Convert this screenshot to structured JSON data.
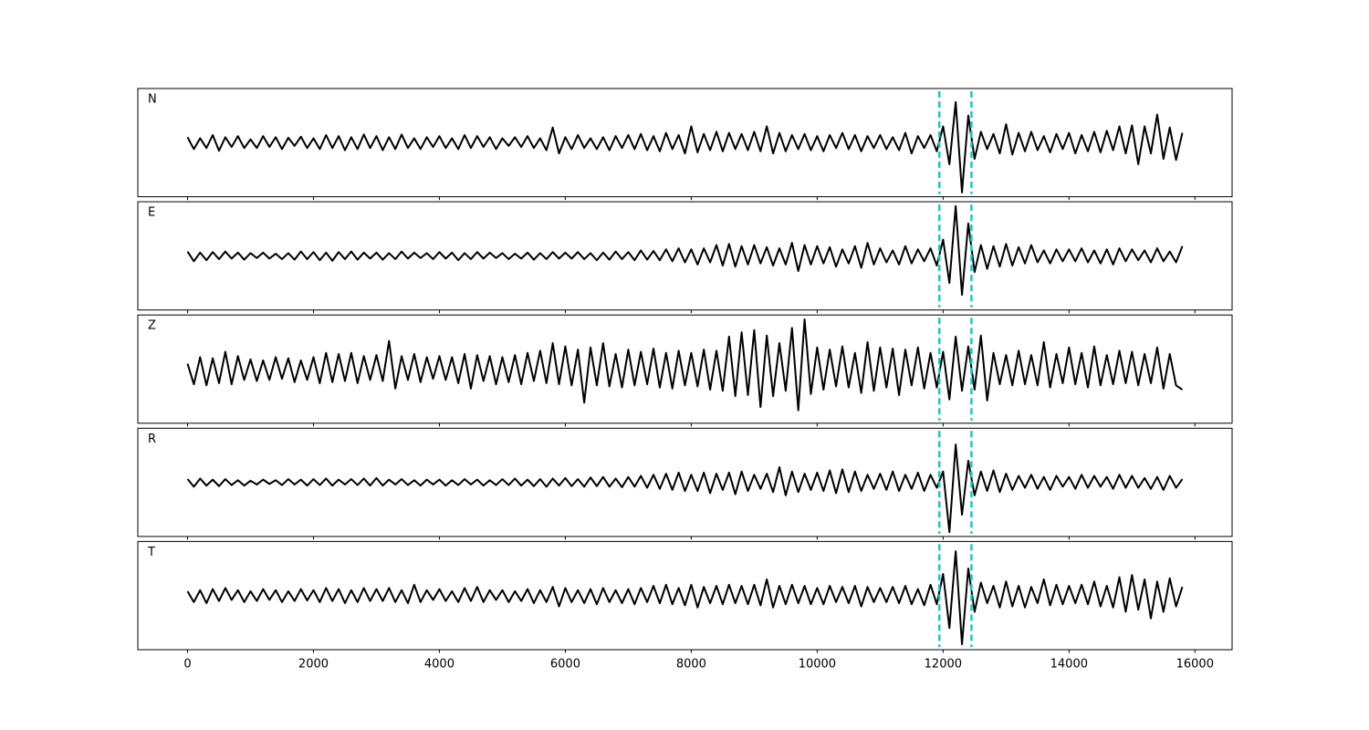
{
  "chart_data": {
    "type": "line",
    "x": [
      0,
      100,
      200,
      300,
      400,
      500,
      600,
      700,
      800,
      900,
      1000,
      1100,
      1200,
      1300,
      1400,
      1500,
      1600,
      1700,
      1800,
      1900,
      2000,
      2100,
      2200,
      2300,
      2400,
      2500,
      2600,
      2700,
      2800,
      2900,
      3000,
      3100,
      3200,
      3300,
      3400,
      3500,
      3600,
      3700,
      3800,
      3900,
      4000,
      4100,
      4200,
      4300,
      4400,
      4500,
      4600,
      4700,
      4800,
      4900,
      5000,
      5100,
      5200,
      5300,
      5400,
      5500,
      5600,
      5700,
      5800,
      5900,
      6000,
      6100,
      6200,
      6300,
      6400,
      6500,
      6600,
      6700,
      6800,
      6900,
      7000,
      7100,
      7200,
      7300,
      7400,
      7500,
      7600,
      7700,
      7800,
      7900,
      8000,
      8100,
      8200,
      8300,
      8400,
      8500,
      8600,
      8700,
      8800,
      8900,
      9000,
      9100,
      9200,
      9300,
      9400,
      9500,
      9600,
      9700,
      9800,
      9900,
      10000,
      10100,
      10200,
      10300,
      10400,
      10500,
      10600,
      10700,
      10800,
      10900,
      11000,
      11100,
      11200,
      11300,
      11400,
      11500,
      11600,
      11700,
      11800,
      11900,
      12000,
      12100,
      12200,
      12300,
      12400,
      12500,
      12600,
      12700,
      12800,
      12900,
      13000,
      13100,
      13200,
      13300,
      13400,
      13500,
      13600,
      13700,
      13800,
      13900,
      14000,
      14100,
      14200,
      14300,
      14400,
      14500,
      14600,
      14700,
      14800,
      14900,
      15000,
      15100,
      15200,
      15300,
      15400,
      15500,
      15600,
      15700,
      15800
    ],
    "series": [
      {
        "name": "N",
        "color": "#000000",
        "values": [
          0.1,
          -0.12,
          0.08,
          -0.1,
          0.14,
          -0.15,
          0.1,
          -0.08,
          0.12,
          -0.1,
          0.06,
          -0.1,
          0.12,
          -0.08,
          0.1,
          -0.12,
          0.09,
          -0.06,
          0.11,
          -0.1,
          0.08,
          -0.12,
          0.14,
          -0.1,
          0.12,
          -0.14,
          0.1,
          -0.12,
          0.15,
          -0.1,
          0.12,
          -0.14,
          0.1,
          -0.12,
          0.15,
          -0.1,
          0.08,
          -0.12,
          0.1,
          -0.08,
          0.12,
          -0.1,
          0.08,
          -0.12,
          0.14,
          -0.1,
          0.12,
          -0.08,
          0.1,
          -0.12,
          0.08,
          -0.06,
          0.1,
          -0.08,
          0.12,
          -0.1,
          0.08,
          -0.14,
          0.28,
          -0.2,
          0.1,
          -0.12,
          0.14,
          -0.1,
          0.08,
          -0.12,
          0.1,
          -0.14,
          0.12,
          -0.1,
          0.14,
          -0.12,
          0.16,
          -0.14,
          0.12,
          -0.16,
          0.18,
          -0.12,
          0.14,
          -0.2,
          0.3,
          -0.18,
          0.16,
          -0.14,
          0.2,
          -0.16,
          0.18,
          -0.12,
          0.16,
          -0.14,
          0.2,
          -0.16,
          0.3,
          -0.2,
          0.18,
          -0.16,
          0.14,
          -0.12,
          0.16,
          -0.14,
          0.12,
          -0.16,
          0.14,
          -0.1,
          0.18,
          -0.12,
          0.14,
          -0.16,
          0.12,
          -0.1,
          0.14,
          -0.12,
          0.1,
          -0.14,
          0.18,
          -0.2,
          0.12,
          -0.1,
          0.14,
          -0.16,
          0.3,
          -0.4,
          0.75,
          -0.92,
          0.5,
          -0.3,
          0.2,
          -0.12,
          0.16,
          -0.2,
          0.34,
          -0.22,
          0.18,
          -0.16,
          0.2,
          -0.14,
          0.12,
          -0.18,
          0.16,
          -0.12,
          0.18,
          -0.2,
          0.14,
          -0.16,
          0.2,
          -0.18,
          0.22,
          -0.14,
          0.3,
          -0.2,
          0.32,
          -0.4,
          0.3,
          -0.2,
          0.52,
          -0.3,
          0.28,
          -0.32,
          0.18
        ]
      },
      {
        "name": "E",
        "color": "#000000",
        "values": [
          0.08,
          -0.1,
          0.06,
          -0.08,
          0.07,
          -0.06,
          0.08,
          -0.05,
          0.06,
          -0.07,
          0.05,
          -0.04,
          0.06,
          -0.05,
          0.04,
          -0.06,
          0.05,
          -0.07,
          0.08,
          -0.06,
          0.07,
          -0.08,
          0.06,
          -0.09,
          0.07,
          -0.06,
          0.08,
          -0.07,
          0.06,
          -0.05,
          0.06,
          -0.07,
          0.05,
          -0.06,
          0.08,
          -0.05,
          0.06,
          -0.04,
          0.05,
          -0.06,
          0.07,
          -0.05,
          0.06,
          -0.08,
          0.05,
          -0.06,
          0.07,
          -0.05,
          0.06,
          -0.04,
          0.05,
          -0.06,
          0.04,
          -0.05,
          0.06,
          -0.07,
          0.05,
          -0.06,
          0.07,
          -0.05,
          0.06,
          -0.05,
          0.07,
          -0.06,
          0.05,
          -0.08,
          0.06,
          -0.07,
          0.08,
          -0.06,
          0.07,
          -0.08,
          0.1,
          -0.07,
          0.09,
          -0.08,
          0.12,
          -0.1,
          0.14,
          -0.12,
          0.12,
          -0.16,
          0.14,
          -0.12,
          0.2,
          -0.18,
          0.22,
          -0.2,
          0.18,
          -0.16,
          0.2,
          -0.14,
          0.16,
          -0.18,
          0.14,
          -0.16,
          0.24,
          -0.28,
          0.2,
          -0.16,
          0.18,
          -0.14,
          0.16,
          -0.2,
          0.12,
          -0.14,
          0.18,
          -0.22,
          0.24,
          -0.16,
          0.14,
          -0.12,
          0.1,
          -0.16,
          0.18,
          -0.14,
          0.12,
          -0.1,
          0.14,
          -0.18,
          0.3,
          -0.5,
          0.92,
          -0.72,
          0.6,
          -0.3,
          0.2,
          -0.24,
          0.18,
          -0.2,
          0.22,
          -0.18,
          0.16,
          -0.14,
          0.2,
          -0.12,
          0.1,
          -0.14,
          0.12,
          -0.1,
          0.12,
          -0.1,
          0.14,
          -0.12,
          0.1,
          -0.14,
          0.12,
          -0.16,
          0.14,
          -0.1,
          0.12,
          -0.08,
          0.1,
          -0.12,
          0.14,
          -0.1,
          0.08,
          -0.12,
          0.18
        ]
      },
      {
        "name": "Z",
        "color": "#000000",
        "values": [
          0.1,
          -0.28,
          0.22,
          -0.3,
          0.2,
          -0.26,
          0.32,
          -0.28,
          0.24,
          -0.2,
          0.18,
          -0.22,
          0.16,
          -0.2,
          0.22,
          -0.18,
          0.2,
          -0.24,
          0.16,
          -0.2,
          0.22,
          -0.26,
          0.3,
          -0.24,
          0.28,
          -0.22,
          0.3,
          -0.26,
          0.24,
          -0.2,
          0.26,
          -0.22,
          0.52,
          -0.36,
          0.24,
          -0.2,
          0.28,
          -0.24,
          0.22,
          -0.18,
          0.24,
          -0.2,
          0.22,
          -0.26,
          0.28,
          -0.36,
          0.26,
          -0.22,
          0.24,
          -0.28,
          0.22,
          -0.24,
          0.26,
          -0.28,
          0.3,
          -0.22,
          0.34,
          -0.26,
          0.48,
          -0.28,
          0.42,
          -0.3,
          0.36,
          -0.62,
          0.4,
          -0.3,
          0.48,
          -0.32,
          0.28,
          -0.34,
          0.36,
          -0.3,
          0.32,
          -0.28,
          0.38,
          -0.34,
          0.3,
          -0.36,
          0.34,
          -0.3,
          0.3,
          -0.32,
          0.36,
          -0.38,
          0.34,
          -0.4,
          0.6,
          -0.5,
          0.68,
          -0.48,
          0.72,
          -0.7,
          0.62,
          -0.5,
          0.48,
          -0.4,
          0.76,
          -0.76,
          0.92,
          -0.46,
          0.4,
          -0.38,
          0.36,
          -0.32,
          0.42,
          -0.34,
          0.3,
          -0.44,
          0.5,
          -0.4,
          0.4,
          -0.34,
          0.38,
          -0.48,
          0.36,
          -0.3,
          0.4,
          -0.36,
          0.3,
          -0.34,
          0.32,
          -0.56,
          0.6,
          -0.4,
          0.42,
          -0.38,
          0.62,
          -0.58,
          0.3,
          -0.28,
          0.26,
          -0.3,
          0.34,
          -0.28,
          0.26,
          -0.3,
          0.5,
          -0.34,
          0.28,
          -0.26,
          0.4,
          -0.28,
          0.3,
          -0.34,
          0.42,
          -0.3,
          0.26,
          -0.28,
          0.34,
          -0.26,
          0.32,
          -0.3,
          0.28,
          -0.26,
          0.4,
          -0.36,
          0.28,
          -0.3,
          -0.38
        ]
      },
      {
        "name": "R",
        "color": "#000000",
        "values": [
          0.06,
          -0.08,
          0.07,
          -0.06,
          0.05,
          -0.07,
          0.06,
          -0.05,
          0.04,
          -0.06,
          0.03,
          -0.04,
          0.05,
          -0.03,
          0.04,
          -0.05,
          0.06,
          -0.04,
          0.05,
          -0.06,
          0.06,
          -0.05,
          0.07,
          -0.06,
          0.05,
          -0.04,
          0.06,
          -0.05,
          0.07,
          -0.06,
          0.08,
          -0.06,
          0.05,
          -0.04,
          0.06,
          -0.05,
          0.04,
          -0.06,
          0.05,
          -0.04,
          0.05,
          -0.06,
          0.04,
          -0.05,
          0.06,
          -0.04,
          0.05,
          -0.06,
          0.04,
          -0.05,
          0.06,
          -0.05,
          0.07,
          -0.06,
          0.05,
          -0.07,
          0.06,
          -0.08,
          0.07,
          -0.06,
          0.08,
          -0.07,
          0.06,
          -0.08,
          0.09,
          -0.07,
          0.1,
          -0.08,
          0.07,
          -0.09,
          0.1,
          -0.08,
          0.12,
          -0.1,
          0.14,
          -0.12,
          0.16,
          -0.14,
          0.18,
          -0.16,
          0.14,
          -0.16,
          0.18,
          -0.2,
          0.16,
          -0.14,
          0.18,
          -0.22,
          0.2,
          -0.16,
          0.14,
          -0.12,
          0.16,
          -0.18,
          0.28,
          -0.24,
          0.2,
          -0.18,
          0.16,
          -0.14,
          0.18,
          -0.16,
          0.22,
          -0.2,
          0.24,
          -0.18,
          0.2,
          -0.16,
          0.14,
          -0.12,
          0.16,
          -0.14,
          0.2,
          -0.16,
          0.14,
          -0.12,
          0.18,
          -0.16,
          0.14,
          -0.1,
          0.2,
          -0.92,
          0.7,
          -0.6,
          0.4,
          -0.24,
          0.2,
          -0.16,
          0.22,
          -0.18,
          0.16,
          -0.14,
          0.12,
          -0.1,
          0.14,
          -0.12,
          0.1,
          -0.14,
          0.12,
          -0.08,
          0.1,
          -0.12,
          0.14,
          -0.1,
          0.12,
          -0.08,
          0.1,
          -0.12,
          0.14,
          -0.1,
          0.12,
          -0.1,
          0.08,
          -0.12,
          0.1,
          -0.14,
          0.12,
          -0.1,
          0.06
        ]
      },
      {
        "name": "T",
        "color": "#000000",
        "values": [
          0.08,
          -0.12,
          0.1,
          -0.14,
          0.12,
          -0.1,
          0.14,
          -0.08,
          0.1,
          -0.12,
          0.08,
          -0.1,
          0.12,
          -0.08,
          0.1,
          -0.12,
          0.08,
          -0.1,
          0.12,
          -0.09,
          0.1,
          -0.12,
          0.14,
          -0.1,
          0.12,
          -0.14,
          0.1,
          -0.12,
          0.14,
          -0.1,
          0.12,
          -0.1,
          0.14,
          -0.12,
          0.1,
          -0.14,
          0.2,
          -0.12,
          0.1,
          -0.08,
          0.12,
          -0.1,
          0.08,
          -0.12,
          0.14,
          -0.1,
          0.16,
          -0.12,
          0.1,
          -0.08,
          0.1,
          -0.12,
          0.08,
          -0.1,
          0.12,
          -0.14,
          0.1,
          -0.12,
          0.16,
          -0.2,
          0.14,
          -0.12,
          0.1,
          -0.14,
          0.12,
          -0.16,
          0.14,
          -0.12,
          0.1,
          -0.14,
          0.12,
          -0.16,
          0.14,
          -0.12,
          0.18,
          -0.14,
          0.2,
          -0.16,
          0.14,
          -0.18,
          0.2,
          -0.22,
          0.16,
          -0.14,
          0.18,
          -0.16,
          0.2,
          -0.14,
          0.18,
          -0.16,
          0.2,
          -0.18,
          0.3,
          -0.22,
          0.18,
          -0.16,
          0.2,
          -0.14,
          0.18,
          -0.16,
          0.14,
          -0.16,
          0.18,
          -0.12,
          0.16,
          -0.14,
          0.18,
          -0.2,
          0.16,
          -0.12,
          0.14,
          -0.12,
          0.16,
          -0.14,
          0.18,
          -0.16,
          0.12,
          -0.18,
          0.2,
          -0.16,
          0.4,
          -0.6,
          0.82,
          -0.9,
          0.5,
          -0.3,
          0.24,
          -0.14,
          0.18,
          -0.22,
          0.26,
          -0.2,
          0.18,
          -0.22,
          0.16,
          -0.14,
          0.3,
          -0.18,
          0.2,
          -0.16,
          0.18,
          -0.14,
          0.2,
          -0.16,
          0.26,
          -0.2,
          0.18,
          -0.22,
          0.34,
          -0.3,
          0.38,
          -0.26,
          0.3,
          -0.42,
          0.26,
          -0.3,
          0.32,
          -0.2,
          0.16
        ]
      }
    ],
    "xlim": [
      -790,
      16590
    ],
    "xticks": [
      0,
      2000,
      4000,
      6000,
      8000,
      10000,
      12000,
      14000,
      16000
    ],
    "ylim": [
      -1,
      1
    ],
    "vlines": [
      11940,
      12450
    ],
    "vline_color": "#1cc6c6"
  }
}
